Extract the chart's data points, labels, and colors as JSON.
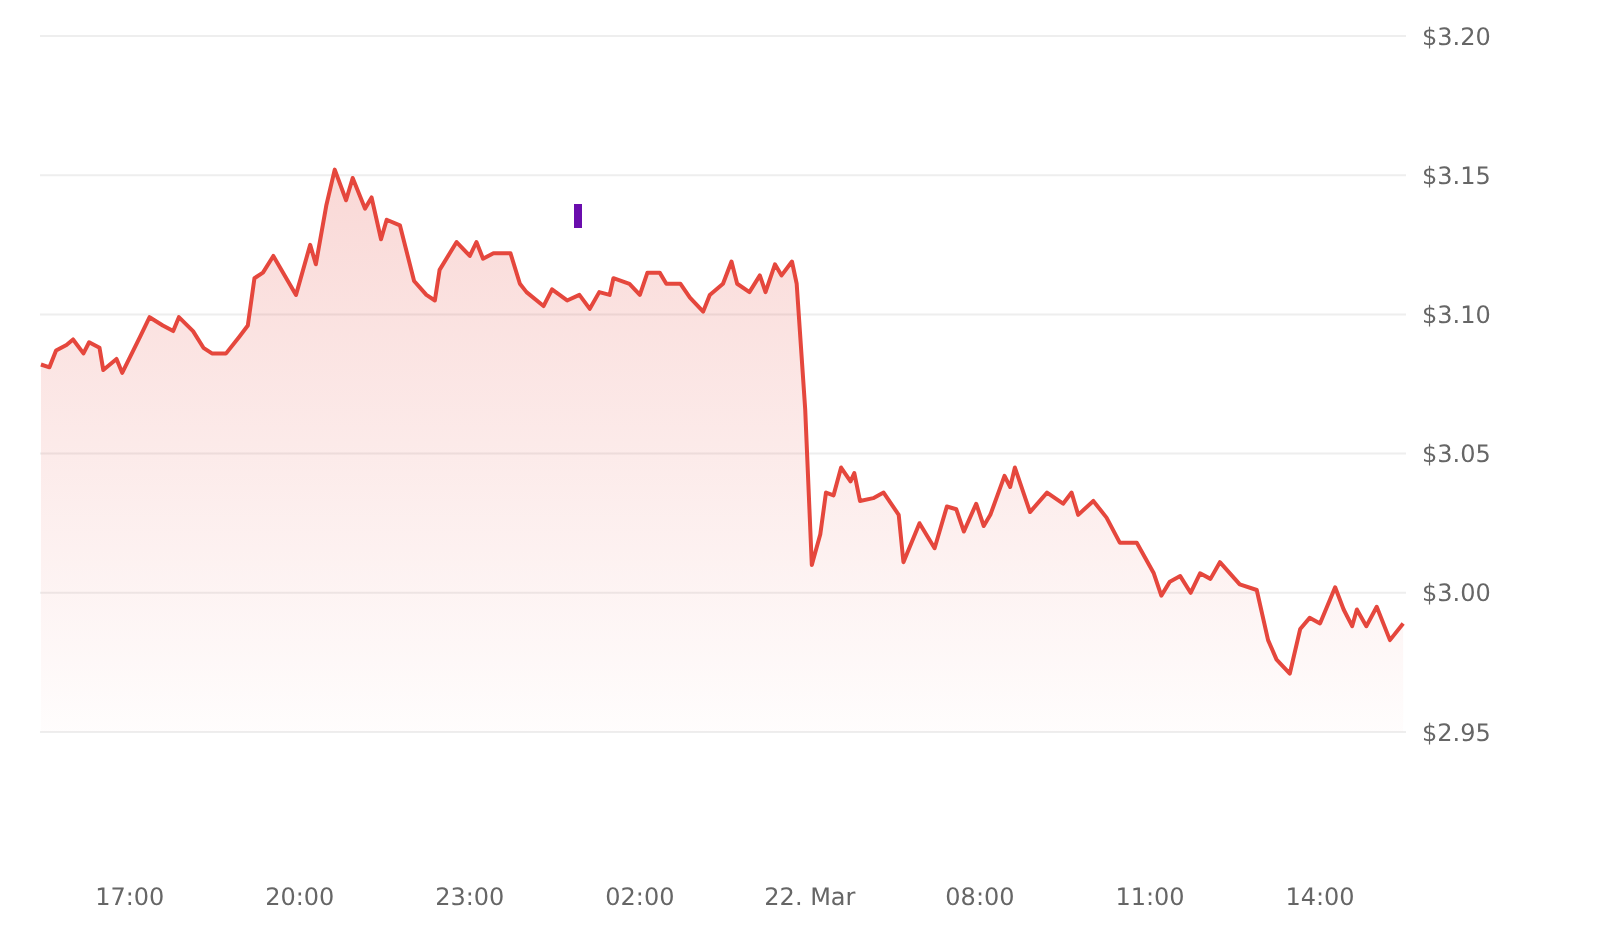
{
  "chart_data": {
    "type": "area",
    "x": [
      "--03-21T15:26",
      "--03-21T15:35",
      "--03-21T15:42",
      "--03-21T15:53",
      "--03-21T16:00",
      "--03-21T16:11",
      "--03-21T16:17",
      "--03-21T16:28",
      "--03-21T16:32",
      "--03-21T16:46",
      "--03-21T16:52",
      "--03-21T17:11",
      "--03-21T17:21",
      "--03-21T17:35",
      "--03-21T17:46",
      "--03-21T17:52",
      "--03-21T18:07",
      "--03-21T18:18",
      "--03-21T18:27",
      "--03-21T18:42",
      "--03-21T18:56",
      "--03-21T19:05",
      "--03-21T19:12",
      "--03-21T19:21",
      "--03-21T19:32",
      "--03-21T19:56",
      "--03-21T20:11",
      "--03-21T20:17",
      "--03-21T20:28",
      "--03-21T20:37",
      "--03-21T20:49",
      "--03-21T20:56",
      "--03-21T21:09",
      "--03-21T21:16",
      "--03-21T21:26",
      "--03-21T21:32",
      "--03-21T21:46",
      "--03-21T22:01",
      "--03-21T22:14",
      "--03-21T22:23",
      "--03-21T22:28",
      "--03-21T22:46",
      "--03-21T23:00",
      "--03-21T23:07",
      "--03-21T23:14",
      "--03-21T23:25",
      "--03-21T23:43",
      "--03-21T23:53",
      "--03-22T00:00",
      "--03-22T00:18",
      "--03-22T00:27",
      "--03-22T00:43",
      "--03-22T00:56",
      "--03-22T01:07",
      "--03-22T01:17",
      "--03-22T01:28",
      "--03-22T01:32",
      "--03-22T01:49",
      "--03-22T02:00",
      "--03-22T02:08",
      "--03-22T02:21",
      "--03-22T02:28",
      "--03-22T02:43",
      "--03-22T02:53",
      "--03-22T03:07",
      "--03-22T03:14",
      "--03-22T03:28",
      "--03-22T03:37",
      "--03-22T03:43",
      "--03-22T03:56",
      "--03-22T04:07",
      "--03-22T04:13",
      "--03-22T04:23",
      "--03-22T04:30",
      "--03-22T04:41",
      "--03-22T04:46",
      "--03-22T04:55",
      "--03-22T05:02",
      "--03-22T05:11",
      "--03-22T05:17",
      "--03-22T05:25",
      "--03-22T05:33",
      "--03-22T05:43",
      "--03-22T05:47",
      "--03-22T05:53",
      "--03-22T06:07",
      "--03-22T06:18",
      "--03-22T06:34",
      "--03-22T06:39",
      "--03-22T06:56",
      "--03-22T07:12",
      "--03-22T07:25",
      "--03-22T07:35",
      "--03-22T07:43",
      "--03-22T07:56",
      "--03-22T08:04",
      "--03-22T08:11",
      "--03-22T08:26",
      "--03-22T08:32",
      "--03-22T08:37",
      "--03-22T08:53",
      "--03-22T09:11",
      "--03-22T09:28",
      "--03-22T09:37",
      "--03-22T09:44",
      "--03-22T10:00",
      "--03-22T10:14",
      "--03-22T10:28",
      "--03-22T10:46",
      "--03-22T11:04",
      "--03-22T11:12",
      "--03-22T11:21",
      "--03-22T11:32",
      "--03-22T11:43",
      "--03-22T11:53",
      "--03-22T12:04",
      "--03-22T12:14",
      "--03-22T12:35",
      "--03-22T12:53",
      "--03-22T13:05",
      "--03-22T13:14",
      "--03-22T13:28",
      "--03-22T13:39",
      "--03-22T13:49",
      "--03-22T14:00",
      "--03-22T14:16",
      "--03-22T14:25",
      "--03-22T14:34",
      "--03-22T14:39",
      "--03-22T14:49",
      "--03-22T15:00",
      "--03-22T15:14",
      "--03-22T15:28"
    ],
    "series": [
      {
        "color": "#e5473d",
        "values": [
          3.082,
          3.081,
          3.087,
          3.089,
          3.091,
          3.086,
          3.09,
          3.088,
          3.08,
          3.084,
          3.079,
          3.092,
          3.099,
          3.096,
          3.094,
          3.099,
          3.094,
          3.088,
          3.086,
          3.086,
          3.092,
          3.096,
          3.113,
          3.115,
          3.121,
          3.107,
          3.125,
          3.118,
          3.139,
          3.152,
          3.141,
          3.149,
          3.138,
          3.142,
          3.127,
          3.134,
          3.132,
          3.112,
          3.107,
          3.105,
          3.116,
          3.126,
          3.121,
          3.126,
          3.12,
          3.122,
          3.122,
          3.111,
          3.108,
          3.103,
          3.109,
          3.105,
          3.107,
          3.102,
          3.108,
          3.107,
          3.113,
          3.111,
          3.107,
          3.115,
          3.115,
          3.111,
          3.111,
          3.106,
          3.101,
          3.107,
          3.111,
          3.119,
          3.111,
          3.108,
          3.114,
          3.108,
          3.118,
          3.114,
          3.119,
          3.111,
          3.066,
          3.01,
          3.021,
          3.036,
          3.035,
          3.045,
          3.04,
          3.043,
          3.033,
          3.034,
          3.036,
          3.028,
          3.011,
          3.025,
          3.016,
          3.031,
          3.03,
          3.022,
          3.032,
          3.024,
          3.028,
          3.042,
          3.038,
          3.045,
          3.029,
          3.036,
          3.032,
          3.036,
          3.028,
          3.033,
          3.027,
          3.018,
          3.018,
          3.007,
          2.999,
          3.004,
          3.006,
          3.0,
          3.007,
          3.005,
          3.011,
          3.003,
          3.001,
          2.983,
          2.976,
          2.971,
          2.987,
          2.991,
          2.989,
          3.002,
          2.994,
          2.988,
          2.994,
          2.988,
          2.995,
          2.983,
          2.989
        ]
      }
    ],
    "xlim": [
      "--03-21T15:25",
      "--03-22T15:31"
    ],
    "xticks": [
      {
        "value": "--03-21T17:00",
        "label": "17:00"
      },
      {
        "value": "--03-21T20:00",
        "label": "20:00"
      },
      {
        "value": "--03-21T23:00",
        "label": "23:00"
      },
      {
        "value": "--03-22T02:00",
        "label": "02:00"
      },
      {
        "value": "--03-22T05:00",
        "label": "22. Mar"
      },
      {
        "value": "--03-22T08:00",
        "label": "08:00"
      },
      {
        "value": "--03-22T11:00",
        "label": "11:00"
      },
      {
        "value": "--03-22T14:00",
        "label": "14:00"
      }
    ],
    "ylim": [
      2.95,
      3.2
    ],
    "yticks": [
      {
        "value": 2.95,
        "label": "$2.95"
      },
      {
        "value": 3.0,
        "label": "$3.00"
      },
      {
        "value": 3.05,
        "label": "$3.05"
      },
      {
        "value": 3.1,
        "label": "$3.10"
      },
      {
        "value": 3.15,
        "label": "$3.15"
      },
      {
        "value": 3.2,
        "label": "$3.20"
      }
    ],
    "grid": "y"
  }
}
